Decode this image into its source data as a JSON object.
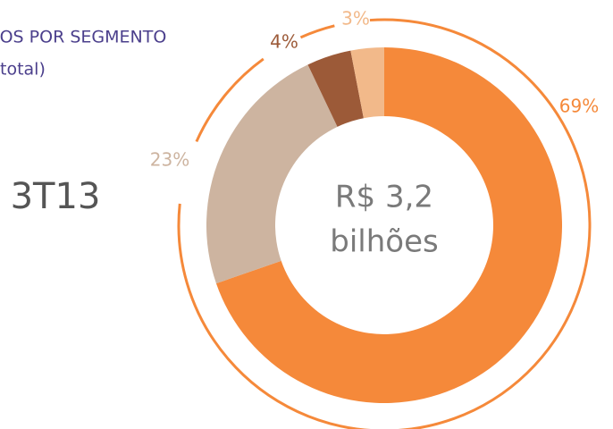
{
  "chart_data": {
    "type": "pie",
    "donut": true,
    "title": "IOS POR SEGMENTO",
    "subtitle": "total)",
    "period": "3T13",
    "center_label": [
      "R$ 3,2",
      "bilhões"
    ],
    "values": [
      69,
      23,
      4,
      3
    ],
    "value_labels": [
      "69%",
      "23%",
      "4%",
      "3%"
    ],
    "colors": [
      "#f5893a",
      "#cdb4a0",
      "#9c5a38",
      "#f2b98a"
    ]
  }
}
